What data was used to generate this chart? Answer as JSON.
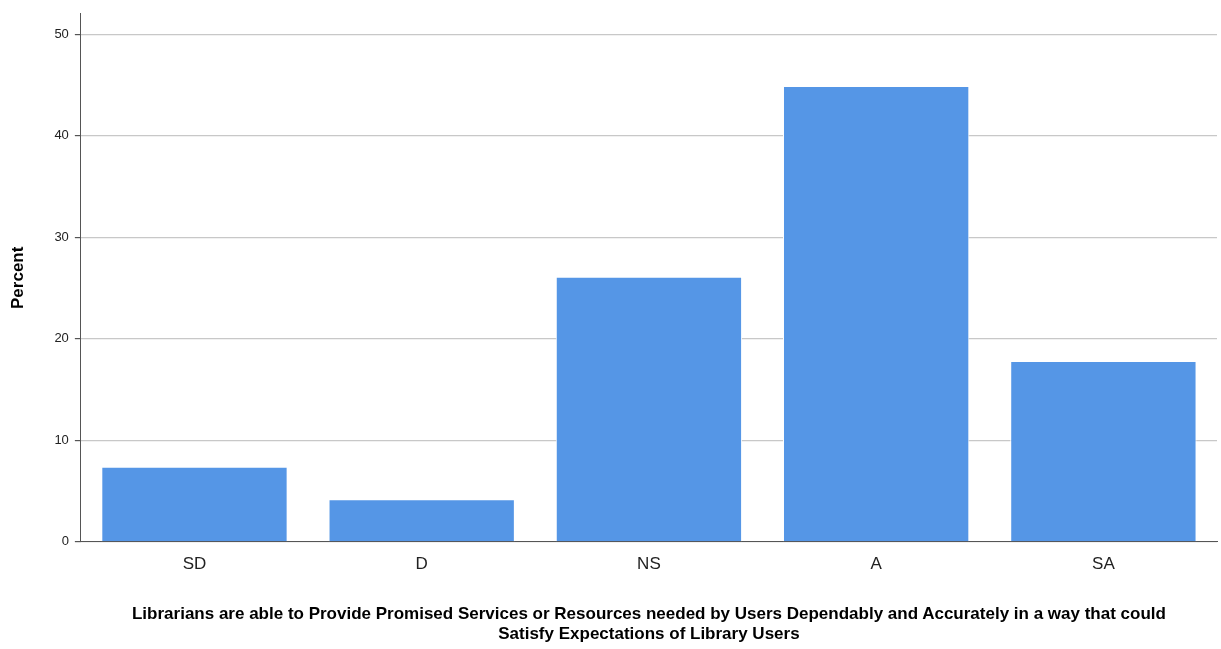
{
  "chart_data": {
    "type": "bar",
    "xlabel": "Librarians are able to Provide Promised Services or Resources needed by Users Dependably and Accurately in a way that could Satisfy Expectations of Library Users",
    "ylabel": "Percent",
    "categories": [
      "SD",
      "D",
      "NS",
      "A",
      "SA"
    ],
    "values": [
      7.4,
      4.2,
      26.1,
      44.9,
      17.8
    ],
    "color": "#5596e6",
    "ylim": [
      0,
      52
    ],
    "yticks": [
      0,
      10,
      20,
      30,
      40,
      50
    ],
    "grid": "y",
    "legend": false
  }
}
